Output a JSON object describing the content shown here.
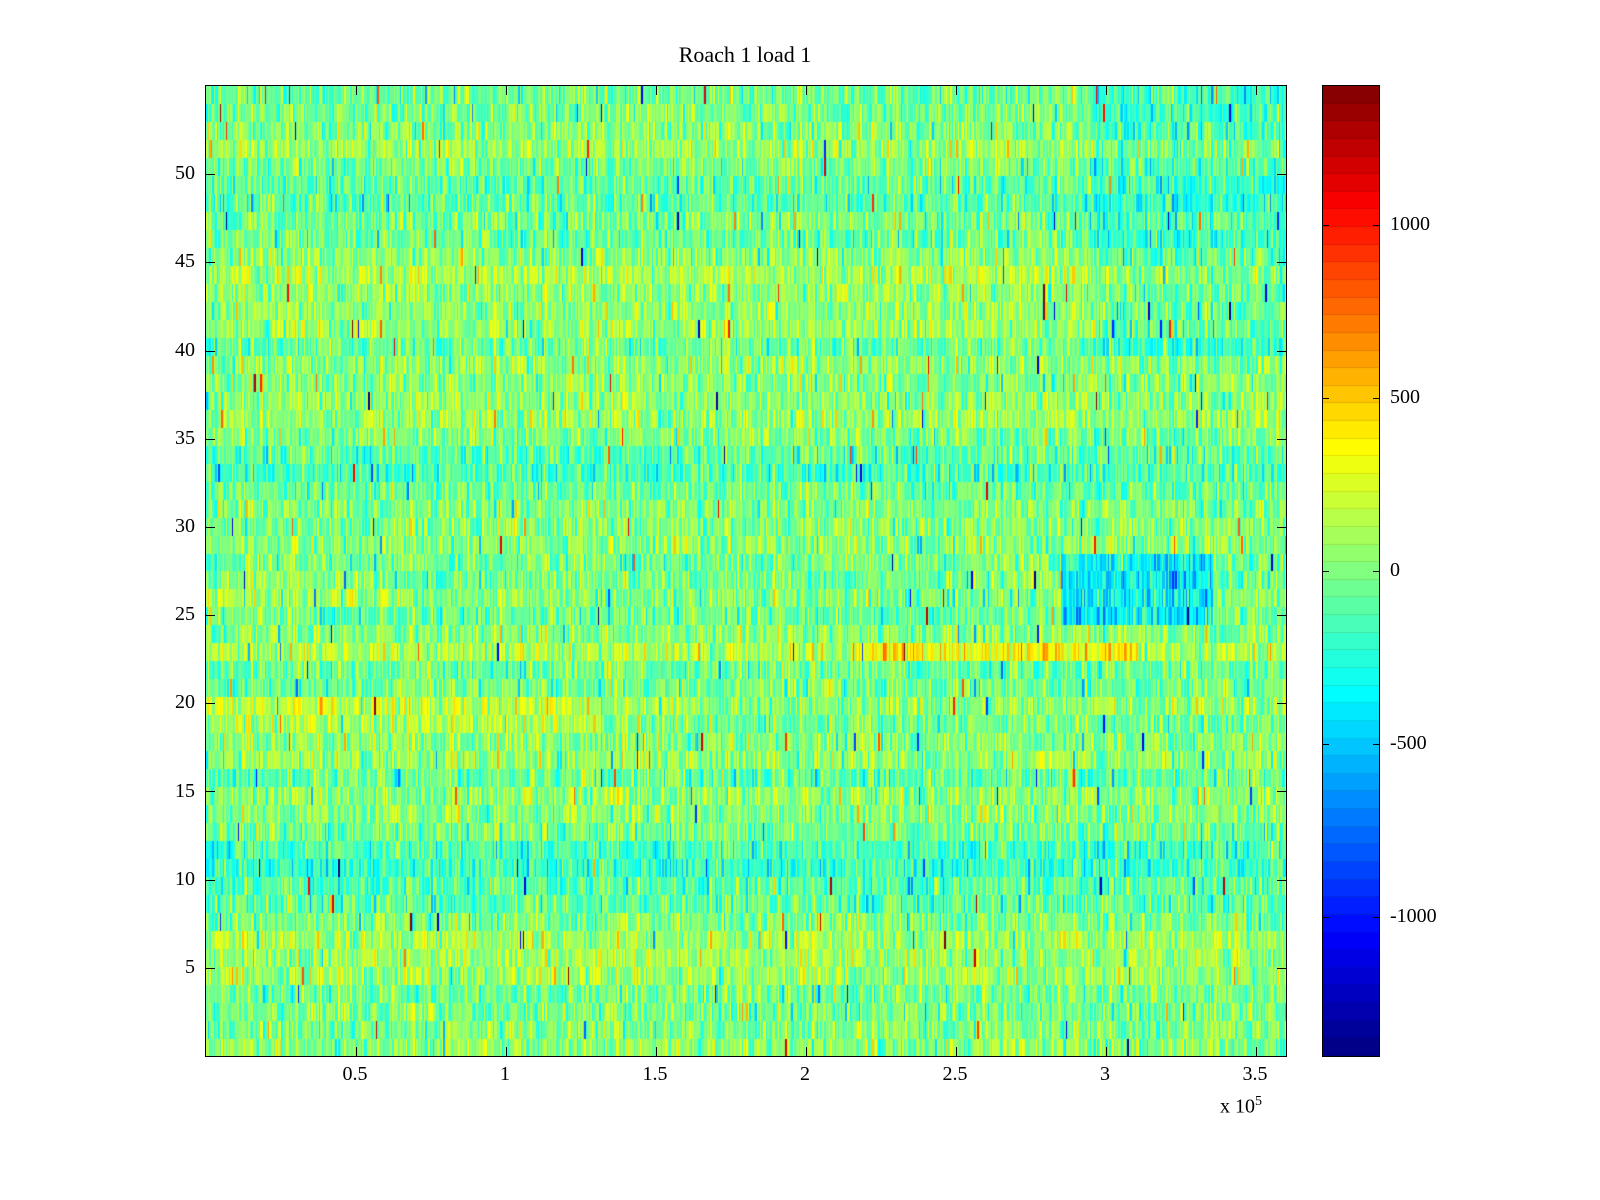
{
  "figure": {
    "background": "#ffffff",
    "axis_color": "#000000"
  },
  "chart_data": {
    "type": "heatmap",
    "title": "Roach 1 load 1",
    "x_axis": {
      "range": [
        0,
        360000
      ],
      "tick_values": [
        50000,
        100000,
        150000,
        200000,
        250000,
        300000,
        350000
      ],
      "tick_labels": [
        "0.5",
        "1",
        "1.5",
        "2",
        "2.5",
        "3",
        "3.5"
      ],
      "offset_label": "x 10",
      "offset_exponent": "5"
    },
    "y_axis": {
      "range": [
        0,
        55
      ],
      "tick_values": [
        5,
        10,
        15,
        20,
        25,
        30,
        35,
        40,
        45,
        50
      ],
      "tick_labels": [
        "5",
        "10",
        "15",
        "20",
        "25",
        "30",
        "35",
        "40",
        "45",
        "50"
      ]
    },
    "colorbar": {
      "colormap": "jet",
      "range": [
        -1400,
        1400
      ],
      "segments": 55,
      "tick_values": [
        1000,
        500,
        0,
        -500,
        -1000
      ],
      "tick_labels": [
        "1000",
        "500",
        "0",
        "-500",
        "-1000"
      ]
    },
    "grid": {
      "rows": 54,
      "cols": 720,
      "seed": 42,
      "noise_std": 170,
      "row_variation": 60,
      "column_streak_std": 40,
      "spike_probability": 0.01,
      "spike_scale": 1000,
      "features": [
        {
          "row_min": 21,
          "row_max": 22,
          "x_min": 0,
          "x_max": 360000,
          "bias": -170
        },
        {
          "row_min": 23,
          "row_max": 23,
          "x_min": 215000,
          "x_max": 310000,
          "bias": 260
        },
        {
          "row_min": 19,
          "row_max": 20,
          "x_min": 0,
          "x_max": 130000,
          "bias": 150
        },
        {
          "row_min": 25,
          "row_max": 28,
          "x_min": 285000,
          "x_max": 335000,
          "bias": -360
        },
        {
          "row_min": 40,
          "row_max": 54,
          "x_min": 295000,
          "x_max": 360000,
          "bias": -130
        },
        {
          "row_min": 11,
          "row_max": 12,
          "x_min": 0,
          "x_max": 360000,
          "bias": -110
        },
        {
          "row_min": 17,
          "row_max": 18,
          "x_min": 0,
          "x_max": 360000,
          "bias": 80
        },
        {
          "row_min": 26,
          "row_max": 27,
          "x_min": 0,
          "x_max": 60000,
          "bias": 120
        }
      ]
    }
  }
}
